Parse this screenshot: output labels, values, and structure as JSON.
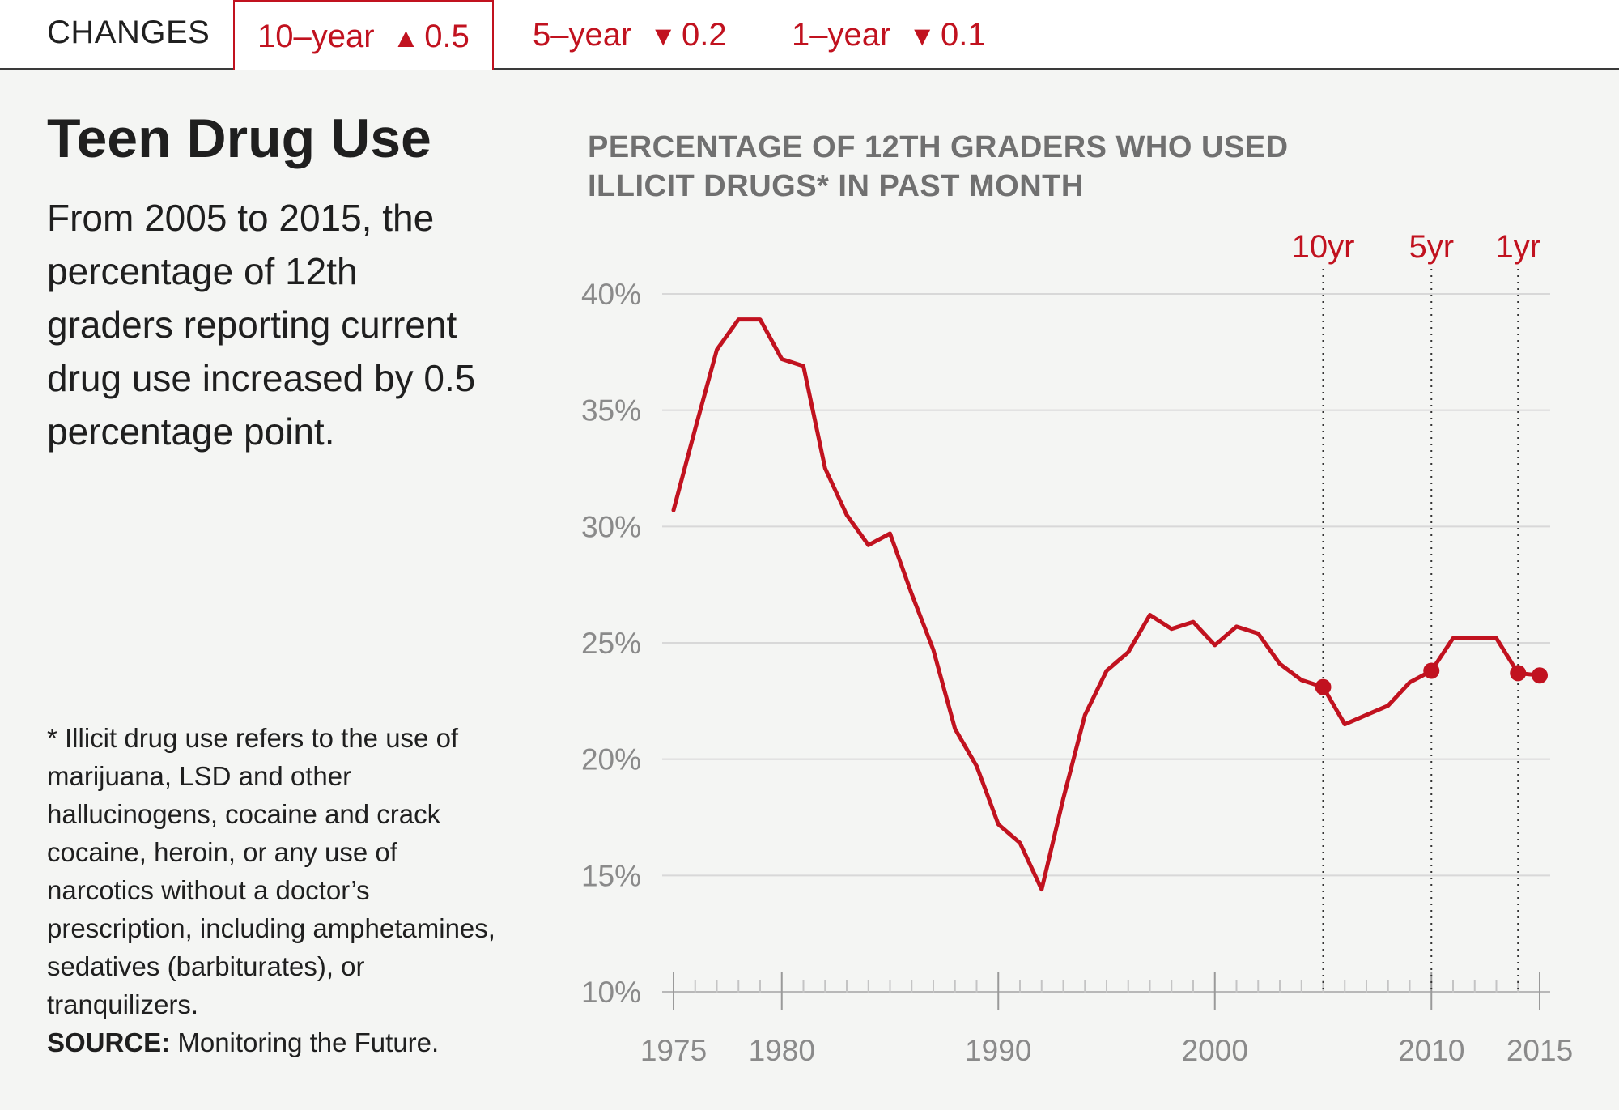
{
  "tabs": {
    "heading": "CHANGES",
    "items": [
      {
        "label": "10–year",
        "arrow": "▲",
        "value": "0.5",
        "active": true
      },
      {
        "label": "5–year",
        "arrow": "▼",
        "value": "0.2",
        "active": false
      },
      {
        "label": "1–year",
        "arrow": "▼",
        "value": "0.1",
        "active": false
      }
    ]
  },
  "title": "Teen Drug Use",
  "summary": "From 2005 to 2015, the percentage of 12th graders reporting current drug use increased by 0.5 percentage point.",
  "footnote": "* Illicit drug use refers to the use of marijuana, LSD and other hallucinogens, cocaine and crack cocaine, heroin, or any use of narcotics without a doctor’s prescription, including amphetamines, sedatives (barbiturates), or tranquilizers.",
  "source": {
    "label": "SOURCE:",
    "text": " Monitoring the Future."
  },
  "colors": {
    "accent": "#c1121f",
    "grid": "#d8d8d8",
    "muted": "#8a8a8a"
  },
  "chart_data": {
    "type": "line",
    "title": "PERCENTAGE OF 12TH GRADERS WHO USED ILLICIT DRUGS* IN PAST MONTH",
    "xlim": [
      1975,
      2015
    ],
    "ylim": [
      10,
      40
    ],
    "y_ticks": [
      10,
      15,
      20,
      25,
      30,
      35,
      40
    ],
    "y_tick_labels": [
      "10%",
      "15%",
      "20%",
      "25%",
      "30%",
      "35%",
      "40%"
    ],
    "x_ticks": [
      1975,
      1980,
      1990,
      2000,
      2010,
      2015
    ],
    "x_tick_labels": [
      "1975",
      "1980",
      "1990",
      "2000",
      "2010",
      "2015"
    ],
    "grid": true,
    "series": [
      {
        "x": [
          1975,
          1976,
          1977,
          1978,
          1979,
          1980,
          1981,
          1982,
          1983,
          1984,
          1985,
          1986,
          1987,
          1988,
          1989,
          1990,
          1991,
          1992,
          1993,
          1994,
          1995,
          1996,
          1997,
          1998,
          1999,
          2000,
          2001,
          2002,
          2003,
          2004,
          2005,
          2006,
          2007,
          2008,
          2009,
          2010,
          2011,
          2012,
          2013,
          2014,
          2015
        ],
        "values": [
          30.7,
          34.2,
          37.6,
          38.9,
          38.9,
          37.2,
          36.9,
          32.5,
          30.5,
          29.2,
          29.7,
          27.1,
          24.7,
          21.3,
          19.7,
          17.2,
          16.4,
          14.4,
          18.3,
          21.9,
          23.8,
          24.6,
          26.2,
          25.6,
          25.9,
          24.9,
          25.7,
          25.4,
          24.1,
          23.4,
          23.1,
          21.5,
          21.9,
          22.3,
          23.3,
          23.8,
          25.2,
          25.2,
          25.2,
          23.7,
          23.6
        ]
      }
    ],
    "markers": [
      {
        "label": "10yr",
        "x": 2005,
        "y": 23.1
      },
      {
        "label": "5yr",
        "x": 2010,
        "y": 23.8
      },
      {
        "label": "1yr",
        "x": 2014,
        "y": 23.7
      }
    ],
    "endpoint": {
      "x": 2015,
      "y": 23.6
    }
  }
}
